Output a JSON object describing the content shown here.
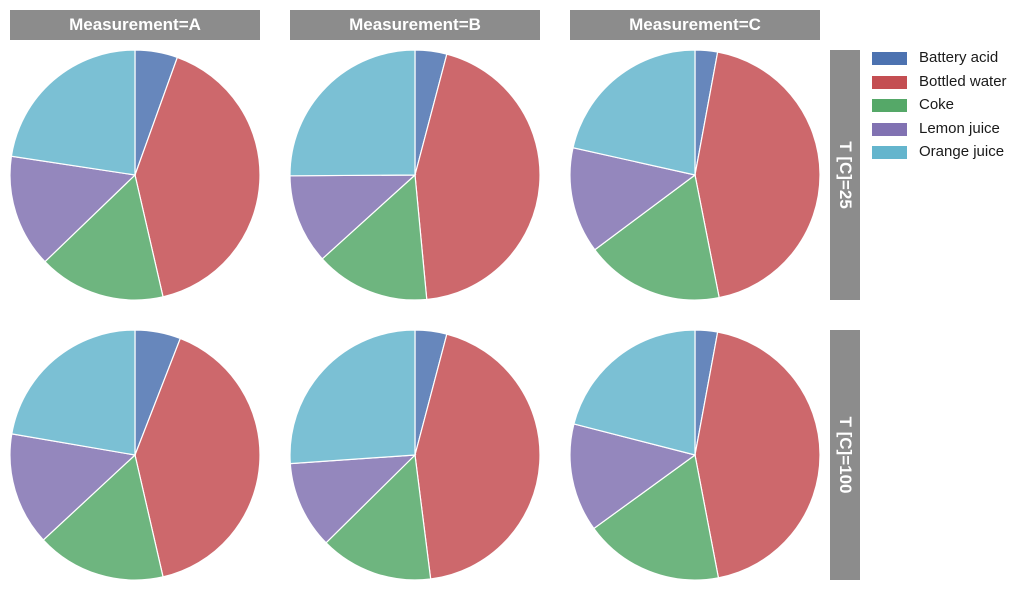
{
  "column_headers": [
    "Measurement=A",
    "Measurement=B",
    "Measurement=C"
  ],
  "row_headers": [
    "T [C]=25",
    "T [C]=100"
  ],
  "legend": {
    "items": [
      {
        "label": "Battery acid",
        "color": "#4c72b0"
      },
      {
        "label": "Bottled water",
        "color": "#c44e52"
      },
      {
        "label": "Coke",
        "color": "#55a868"
      },
      {
        "label": "Lemon juice",
        "color": "#8172b2"
      },
      {
        "label": "Orange juice",
        "color": "#64b5cd"
      }
    ]
  },
  "chart_data": [
    {
      "type": "pie",
      "measurement": "A",
      "temperature": "25",
      "categories": [
        "Battery acid",
        "Bottled water",
        "Coke",
        "Lemon juice",
        "Orange juice"
      ],
      "values": [
        5.5,
        40.9,
        16.4,
        14.6,
        22.6
      ]
    },
    {
      "type": "pie",
      "measurement": "B",
      "temperature": "25",
      "categories": [
        "Battery acid",
        "Bottled water",
        "Coke",
        "Lemon juice",
        "Orange juice"
      ],
      "values": [
        4.1,
        44.4,
        14.8,
        11.6,
        25.1
      ]
    },
    {
      "type": "pie",
      "measurement": "C",
      "temperature": "25",
      "categories": [
        "Battery acid",
        "Bottled water",
        "Coke",
        "Lemon juice",
        "Orange juice"
      ],
      "values": [
        2.9,
        44.0,
        17.9,
        13.7,
        21.5
      ]
    },
    {
      "type": "pie",
      "measurement": "A",
      "temperature": "100",
      "categories": [
        "Battery acid",
        "Bottled water",
        "Coke",
        "Lemon juice",
        "Orange juice"
      ],
      "values": [
        5.9,
        40.5,
        16.7,
        14.6,
        22.3
      ]
    },
    {
      "type": "pie",
      "measurement": "B",
      "temperature": "100",
      "categories": [
        "Battery acid",
        "Bottled water",
        "Coke",
        "Lemon juice",
        "Orange juice"
      ],
      "values": [
        4.1,
        43.9,
        14.6,
        11.3,
        26.1
      ]
    },
    {
      "type": "pie",
      "measurement": "C",
      "temperature": "100",
      "categories": [
        "Battery acid",
        "Bottled water",
        "Coke",
        "Lemon juice",
        "Orange juice"
      ],
      "values": [
        2.9,
        44.1,
        18.0,
        14.0,
        21.0
      ]
    }
  ]
}
